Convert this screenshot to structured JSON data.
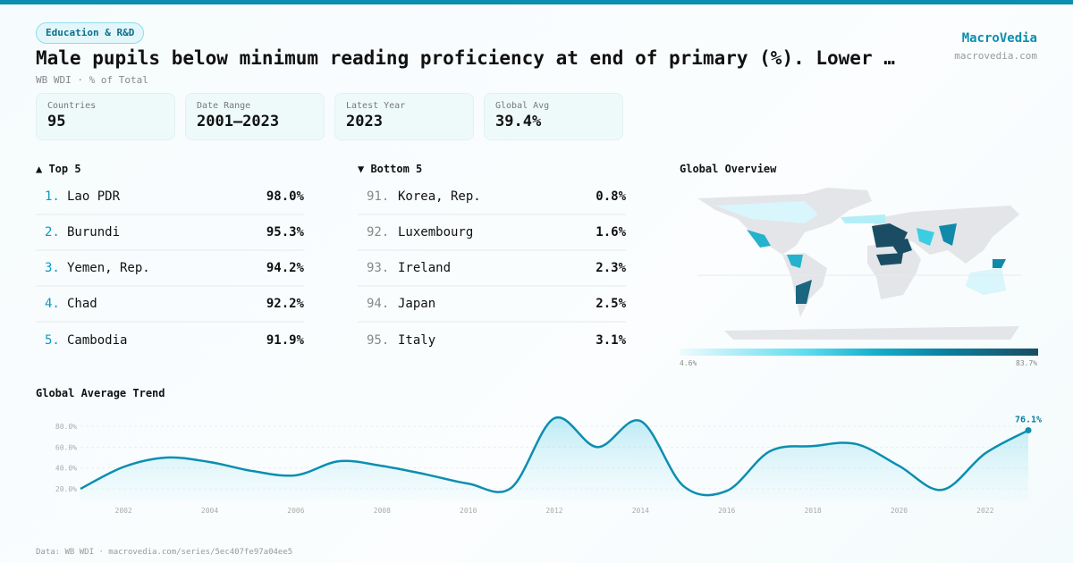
{
  "header": {
    "category": "Education & R&D",
    "title": "Male pupils below minimum reading proficiency at end of primary (%). Lower secondary education",
    "subtitle": "WB WDI · % of Total",
    "brand": "MacroVedia",
    "domain": "macrovedia.com"
  },
  "stats": [
    {
      "label": "Countries",
      "value": "95"
    },
    {
      "label": "Date Range",
      "value": "2001–2023"
    },
    {
      "label": "Latest Year",
      "value": "2023"
    },
    {
      "label": "Global Avg",
      "value": "39.4%"
    }
  ],
  "top": {
    "title": "▲ Top 5",
    "items": [
      {
        "rank": "1.",
        "name": "Lao PDR",
        "value": "98.0%"
      },
      {
        "rank": "2.",
        "name": "Burundi",
        "value": "95.3%"
      },
      {
        "rank": "3.",
        "name": "Yemen, Rep.",
        "value": "94.2%"
      },
      {
        "rank": "4.",
        "name": "Chad",
        "value": "92.2%"
      },
      {
        "rank": "5.",
        "name": "Cambodia",
        "value": "91.9%"
      }
    ]
  },
  "bottom": {
    "title": "▼ Bottom 5",
    "items": [
      {
        "rank": "91.",
        "name": "Korea, Rep.",
        "value": "0.8%"
      },
      {
        "rank": "92.",
        "name": "Luxembourg",
        "value": "1.6%"
      },
      {
        "rank": "93.",
        "name": "Ireland",
        "value": "2.3%"
      },
      {
        "rank": "94.",
        "name": "Japan",
        "value": "2.5%"
      },
      {
        "rank": "95.",
        "name": "Italy",
        "value": "3.1%"
      }
    ]
  },
  "map": {
    "title": "Global Overview",
    "min_label": "4.6%",
    "max_label": "83.7%",
    "colors": {
      "low": "#effbfd",
      "high": "#1a4d63",
      "no_data": "#e3e5e8"
    }
  },
  "trend": {
    "title": "Global Average Trend",
    "last_label": "76.1%",
    "color": "#0b8eb0"
  },
  "chart_data": {
    "type": "area",
    "x": [
      2001,
      2002,
      2003,
      2004,
      2005,
      2006,
      2007,
      2008,
      2009,
      2010,
      2011,
      2012,
      2013,
      2014,
      2015,
      2016,
      2017,
      2018,
      2019,
      2020,
      2021,
      2022,
      2023
    ],
    "values": [
      20.0,
      41,
      50,
      45.7,
      37,
      33,
      46.5,
      42,
      34,
      25,
      21,
      87.7,
      60,
      85,
      22.5,
      18,
      56,
      61,
      63,
      42,
      19,
      54,
      76.1
    ],
    "yticks": [
      "20.0%",
      "40.0%",
      "60.0%",
      "80.0%"
    ],
    "xticks": [
      "2002",
      "2004",
      "2006",
      "2008",
      "2010",
      "2012",
      "2014",
      "2016",
      "2018",
      "2020",
      "2022"
    ],
    "grid": true
  },
  "footer": "Data: WB WDI · macrovedia.com/series/5ec407fe97a04ee5"
}
